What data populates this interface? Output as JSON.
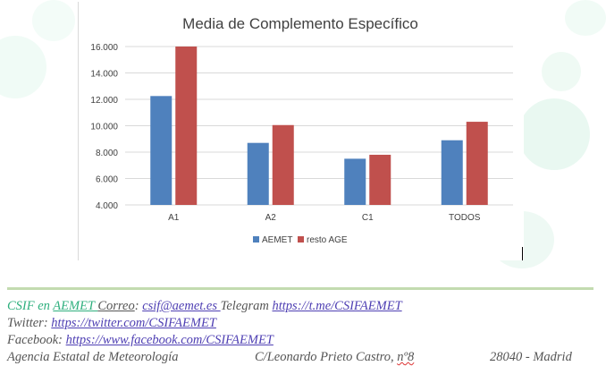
{
  "chart_data": {
    "type": "bar",
    "title": "Media de Complemento Específico",
    "categories": [
      "A1",
      "A2",
      "C1",
      "TODOS"
    ],
    "series": [
      {
        "name": "AEMET",
        "color": "#4f81bd",
        "values": [
          12250,
          8700,
          7500,
          8900
        ]
      },
      {
        "name": "resto AGE",
        "color": "#c0504d",
        "values": [
          16000,
          10050,
          7800,
          10300
        ]
      }
    ],
    "ylim": [
      4000,
      16000
    ],
    "yticks": [
      "4.000",
      "6.000",
      "8.000",
      "10.000",
      "12.000",
      "14.000",
      "16.000"
    ],
    "ytick_values": [
      4000,
      6000,
      8000,
      10000,
      12000,
      14000,
      16000
    ],
    "grid": true,
    "legend_position": "bottom",
    "xlabel": "",
    "ylabel": ""
  },
  "footer": {
    "l1_csif_en": "CSIF en ",
    "l1_aemet": "AEMET ",
    "l1_correo": " Correo",
    "l1_colon": ": ",
    "l1_email": "csif@aemet.es ",
    "l1_telegram": "Telegram  ",
    "l1_telegram_url": "https://t.me/CSIFAEMET",
    "l2_twitter": "Twitter: ",
    "l2_twitter_url": "https://twitter.com/CSIFAEMET",
    "l3_facebook": "Facebook: ",
    "l3_facebook_url": "https://www.facebook.com/CSIFAEMET",
    "l4_agency": "Agencia Estatal de Meteorología",
    "l4_street": "C/Leonardo Prieto Castro, ",
    "l4_number": "nº8",
    "l4_city": "28040 - Madrid"
  }
}
